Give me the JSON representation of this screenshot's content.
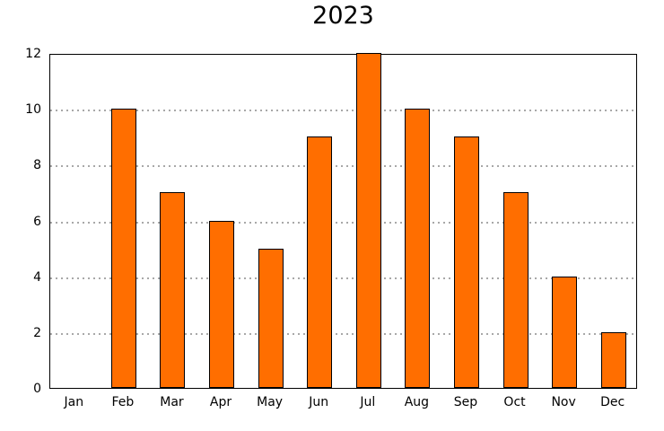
{
  "chart_data": {
    "type": "bar",
    "title": "2023",
    "categories": [
      "Jan",
      "Feb",
      "Mar",
      "Apr",
      "May",
      "Jun",
      "Jul",
      "Aug",
      "Sep",
      "Oct",
      "Nov",
      "Dec"
    ],
    "values": [
      0,
      10,
      7,
      6,
      5,
      9,
      12,
      10,
      9,
      7,
      4,
      2
    ],
    "xlabel": "",
    "ylabel": "",
    "ylim": [
      0,
      12
    ],
    "yticks": [
      0,
      2,
      4,
      6,
      8,
      10,
      12
    ],
    "grid": "horizontal-dotted",
    "legend_position": "none",
    "bar_color": "#ff6e00",
    "bar_edge_color": "#000000",
    "gridline_color": "#a8a8a8",
    "frame_color": "#000000"
  }
}
